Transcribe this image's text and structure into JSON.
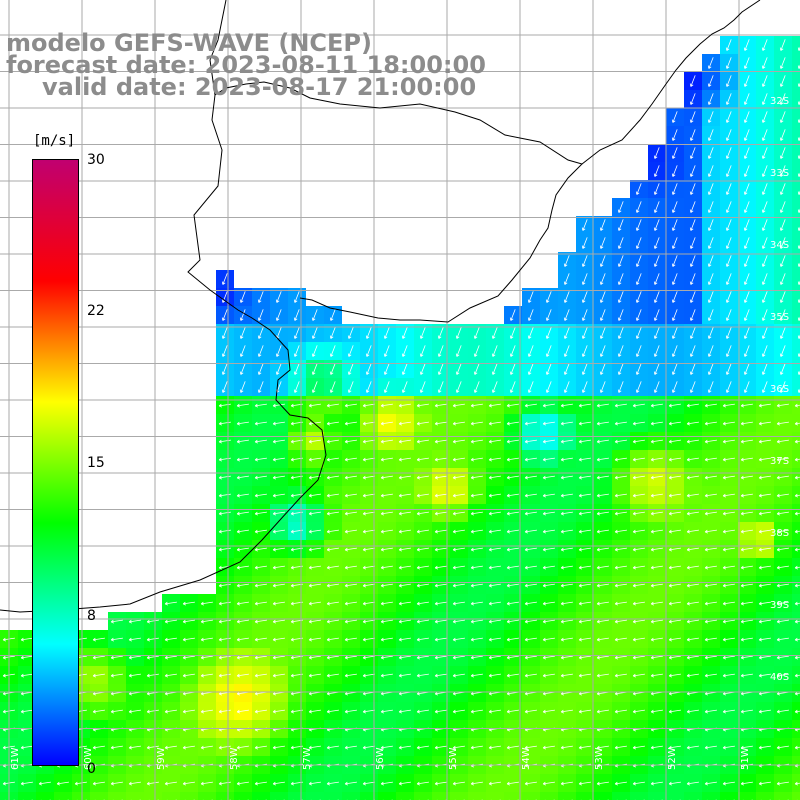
{
  "title": {
    "line1": "modelo GEFS-WAVE (NCEP)",
    "line2": "forecast date: 2023-08-11 18:00:00",
    "line3": "valid date: 2023-08-17 21:00:00"
  },
  "colorbar": {
    "unit": "[m/s]",
    "ticks": [
      "30",
      "22",
      "15",
      "8",
      "0"
    ],
    "range": [
      0,
      30
    ],
    "colors": [
      "#0000ff",
      "#00ffff",
      "#00ff00",
      "#ffff00",
      "#ff0000",
      "#c00070"
    ]
  },
  "map": {
    "background": "#ffffff",
    "land_outline": "#000000",
    "wind_arrows": "#ffffff",
    "lat_labels": [
      "32S",
      "33S",
      "34S",
      "35S",
      "36S",
      "37S",
      "38S",
      "39S",
      "40S"
    ],
    "lon_labels": [
      "61W",
      "60W",
      "59W",
      "58W",
      "57W",
      "56W",
      "55W",
      "54W",
      "53W",
      "52W",
      "51W"
    ],
    "label_color": "#ffffff"
  }
}
